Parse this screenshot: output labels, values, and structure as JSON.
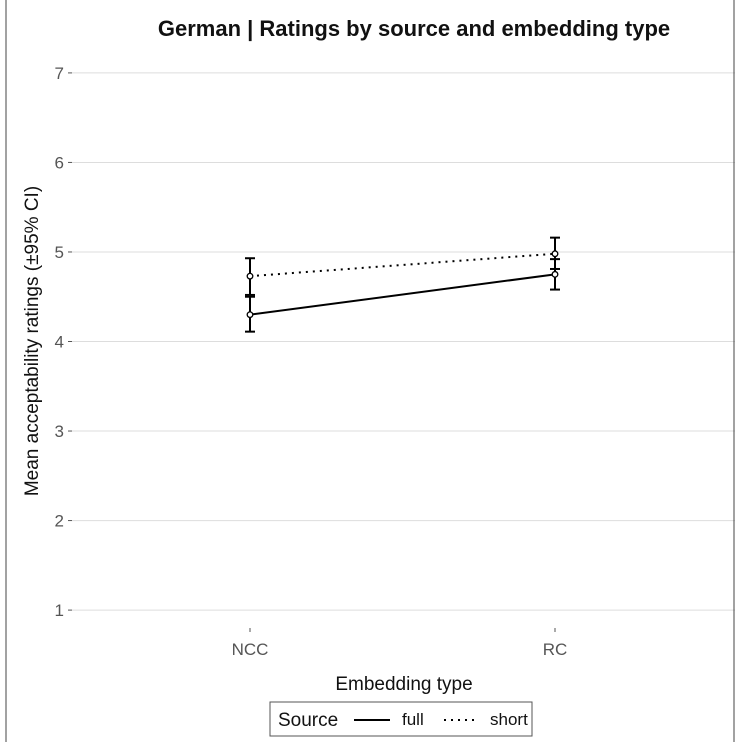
{
  "chart_data": {
    "type": "line",
    "title": "German | Ratings by source and embedding type",
    "xlabel": "Embedding type",
    "ylabel": "Mean acceptability ratings (±95% CI)",
    "categories": [
      "NCC",
      "RC"
    ],
    "ylim": [
      0.8,
      7.2
    ],
    "yticks": [
      1,
      2,
      3,
      4,
      5,
      6,
      7
    ],
    "grid": true,
    "legend": {
      "title": "Source",
      "position": "bottom"
    },
    "series": [
      {
        "name": "full",
        "line_style": "solid",
        "values": [
          4.3,
          4.75
        ],
        "ci_low": [
          4.11,
          4.58
        ],
        "ci_high": [
          4.5,
          4.92
        ]
      },
      {
        "name": "short",
        "line_style": "dotted",
        "values": [
          4.73,
          4.98
        ],
        "ci_low": [
          4.52,
          4.81
        ],
        "ci_high": [
          4.93,
          5.16
        ]
      }
    ],
    "colors": {
      "line": "#000000",
      "grid": "#dddddd",
      "text": "#555555"
    }
  }
}
